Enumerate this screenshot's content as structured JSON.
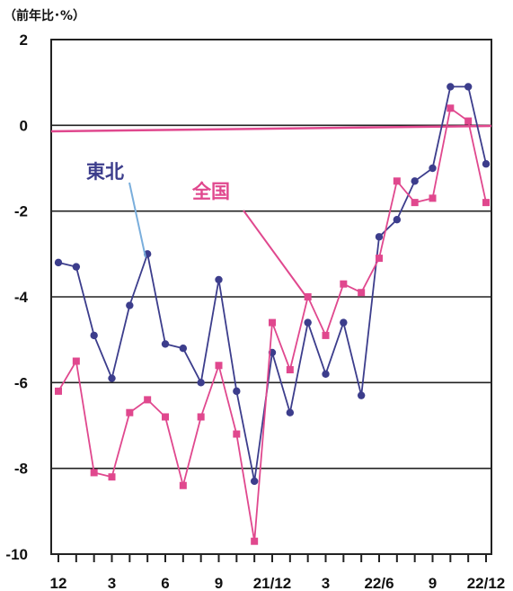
{
  "unit_label": "（前年比･%）",
  "chart_data": {
    "type": "line",
    "ylabel": "（前年比･%）",
    "ylim": [
      -10,
      2
    ],
    "yticks": [
      2,
      0,
      -2,
      -4,
      -6,
      -8,
      -10
    ],
    "x_tick_labels": [
      {
        "index": 0,
        "label": "12"
      },
      {
        "index": 3,
        "label": "3"
      },
      {
        "index": 6,
        "label": "6"
      },
      {
        "index": 9,
        "label": "9"
      },
      {
        "index": 12,
        "label": "21/12"
      },
      {
        "index": 15,
        "label": "3"
      },
      {
        "index": 18,
        "label": "22/6"
      },
      {
        "index": 21,
        "label": "9"
      },
      {
        "index": 24,
        "label": "22/12"
      }
    ],
    "grid": true,
    "reference_line": 0,
    "series": [
      {
        "name": "東北",
        "color": "#3c3d8c",
        "marker": "circle",
        "values": [
          -3.2,
          -3.3,
          -4.9,
          -5.9,
          -4.2,
          -3.0,
          -5.1,
          -5.2,
          -6.0,
          -3.6,
          -6.2,
          -8.3,
          -5.3,
          -6.7,
          -4.6,
          -5.8,
          -4.6,
          -6.3,
          -2.6,
          -2.2,
          -1.3,
          -1.0,
          0.9,
          0.9,
          -0.9
        ]
      },
      {
        "name": "全国",
        "color": "#e0488e",
        "marker": "square",
        "values": [
          -6.2,
          -5.5,
          -8.1,
          -8.2,
          -6.7,
          -6.4,
          -6.8,
          -8.4,
          -6.8,
          -5.6,
          -7.2,
          -9.7,
          -4.6,
          -5.7,
          -4.0,
          -4.9,
          -3.7,
          -3.9,
          -3.1,
          -1.3,
          -1.8,
          -1.7,
          0.4,
          0.1,
          -1.8
        ]
      }
    ]
  }
}
